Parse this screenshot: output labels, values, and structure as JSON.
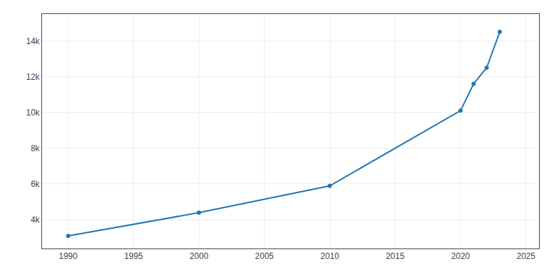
{
  "chart_data": {
    "type": "line",
    "x": [
      1990,
      2000,
      2010,
      2020,
      2021,
      2022,
      2023
    ],
    "values": [
      3100,
      4400,
      5900,
      10100,
      11600,
      12500,
      14500
    ],
    "marker": "circle",
    "xlim": [
      1988,
      2026
    ],
    "xticks": [
      1990,
      1995,
      2000,
      2005,
      2010,
      2015,
      2020,
      2025
    ],
    "ylim": [
      2400,
      15500
    ],
    "yticks": [
      {
        "value": 4000,
        "label": "4k"
      },
      {
        "value": 6000,
        "label": "6k"
      },
      {
        "value": 8000,
        "label": "8k"
      },
      {
        "value": 10000,
        "label": "10k"
      },
      {
        "value": 12000,
        "label": "12k"
      },
      {
        "value": 14000,
        "label": "14k"
      }
    ],
    "grid": true
  }
}
